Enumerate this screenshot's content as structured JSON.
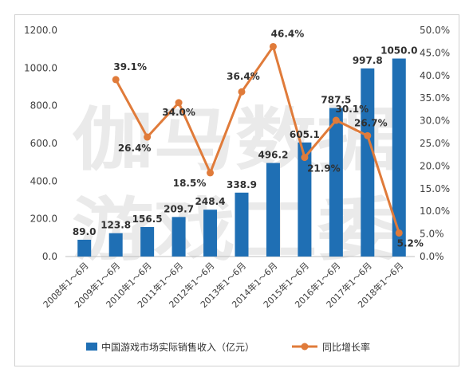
{
  "watermark": {
    "line1": "伽马数据",
    "line2": "游戏工委"
  },
  "chart_data": {
    "type": "bar",
    "categories": [
      "2008年1～6月",
      "2009年1～6月",
      "2010年1～6月",
      "2011年1～6月",
      "2012年1～6月",
      "2013年1～6月",
      "2014年1～6月",
      "2015年1～6月",
      "2016年1～6月",
      "2017年1～6月",
      "2018年1～6月"
    ],
    "series": [
      {
        "name": "中国游戏市场实际销售收入（亿元）",
        "type": "bar",
        "axis": "left",
        "values": [
          89.0,
          123.8,
          156.5,
          209.7,
          248.4,
          338.9,
          496.2,
          605.1,
          787.5,
          997.8,
          1050.0
        ],
        "labels": [
          "89.0",
          "123.8",
          "156.5",
          "209.7",
          "248.4",
          "338.9",
          "496.2",
          "605.1",
          "787.5",
          "997.8",
          "1050.0"
        ],
        "color": "#1f6fb4"
      },
      {
        "name": "同比增长率",
        "type": "line",
        "axis": "right",
        "values": [
          null,
          39.1,
          26.4,
          34.0,
          18.5,
          36.4,
          46.4,
          21.9,
          30.1,
          26.7,
          5.2
        ],
        "labels": [
          "",
          "39.1%",
          "26.4%",
          "34.0%",
          "18.5%",
          "36.4%",
          "46.4%",
          "21.9%",
          "30.1%",
          "26.7%",
          "5.2%"
        ],
        "color": "#e07b3a"
      }
    ],
    "y_left": {
      "min": 0,
      "max": 1200,
      "ticks": [
        "0.0",
        "200.0",
        "400.0",
        "600.0",
        "800.0",
        "1000.0",
        "1200.0"
      ]
    },
    "y_right": {
      "min": 0,
      "max": 50,
      "ticks": [
        "0.0%",
        "5.0%",
        "10.0%",
        "15.0%",
        "20.0%",
        "25.0%",
        "30.0%",
        "35.0%",
        "40.0%",
        "45.0%",
        "50.0%"
      ]
    },
    "grid": false,
    "legend_position": "bottom",
    "title": "",
    "xlabel": "",
    "ylabel": ""
  }
}
